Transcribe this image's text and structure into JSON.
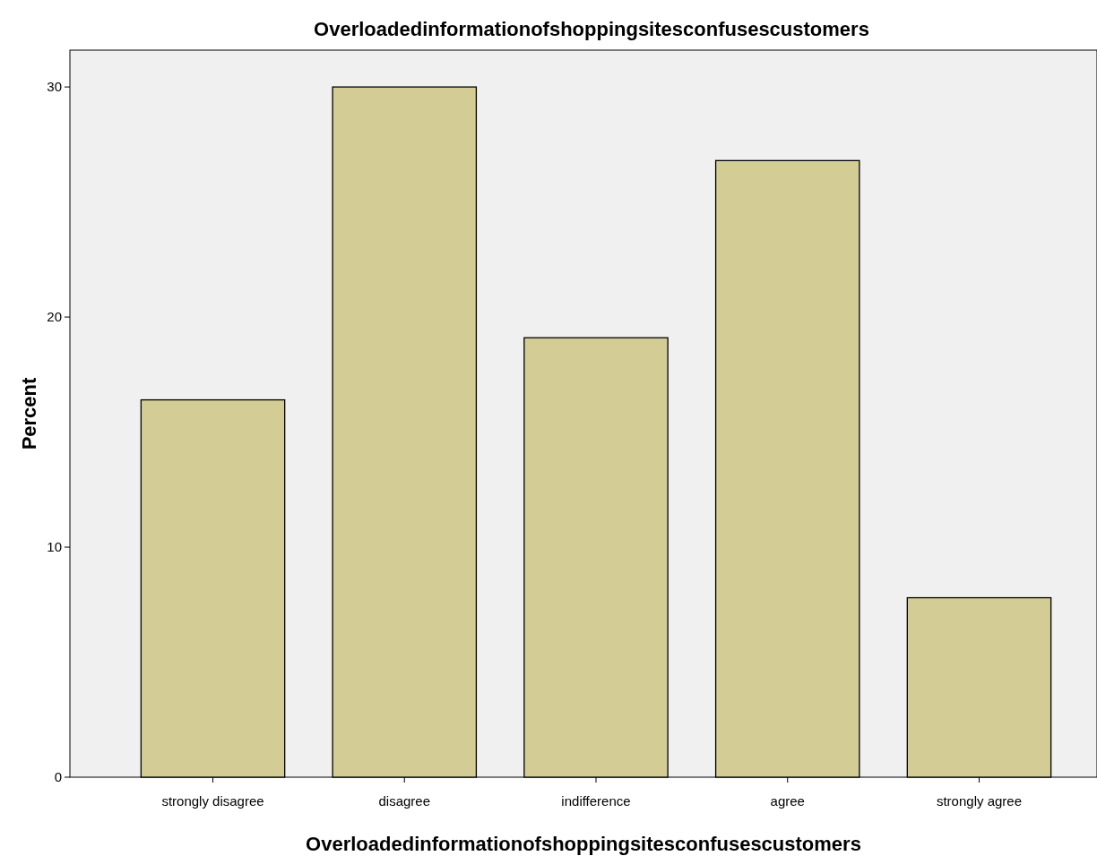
{
  "chart_data": {
    "type": "bar",
    "title": "Overloadedinformationofshoppingsitesconfusescustomers",
    "xlabel": "Overloadedinformationofshoppingsitesconfusescustomers",
    "ylabel": "Percent",
    "categories": [
      "strongly disagree",
      "disagree",
      "indifference",
      "agree",
      "strongly agree"
    ],
    "values": [
      16.4,
      30.0,
      19.1,
      26.8,
      7.8
    ],
    "color": "#d3cd95",
    "ylim": [
      0,
      31.6
    ],
    "yticks": [
      0,
      10,
      20,
      30
    ],
    "grid": false
  }
}
